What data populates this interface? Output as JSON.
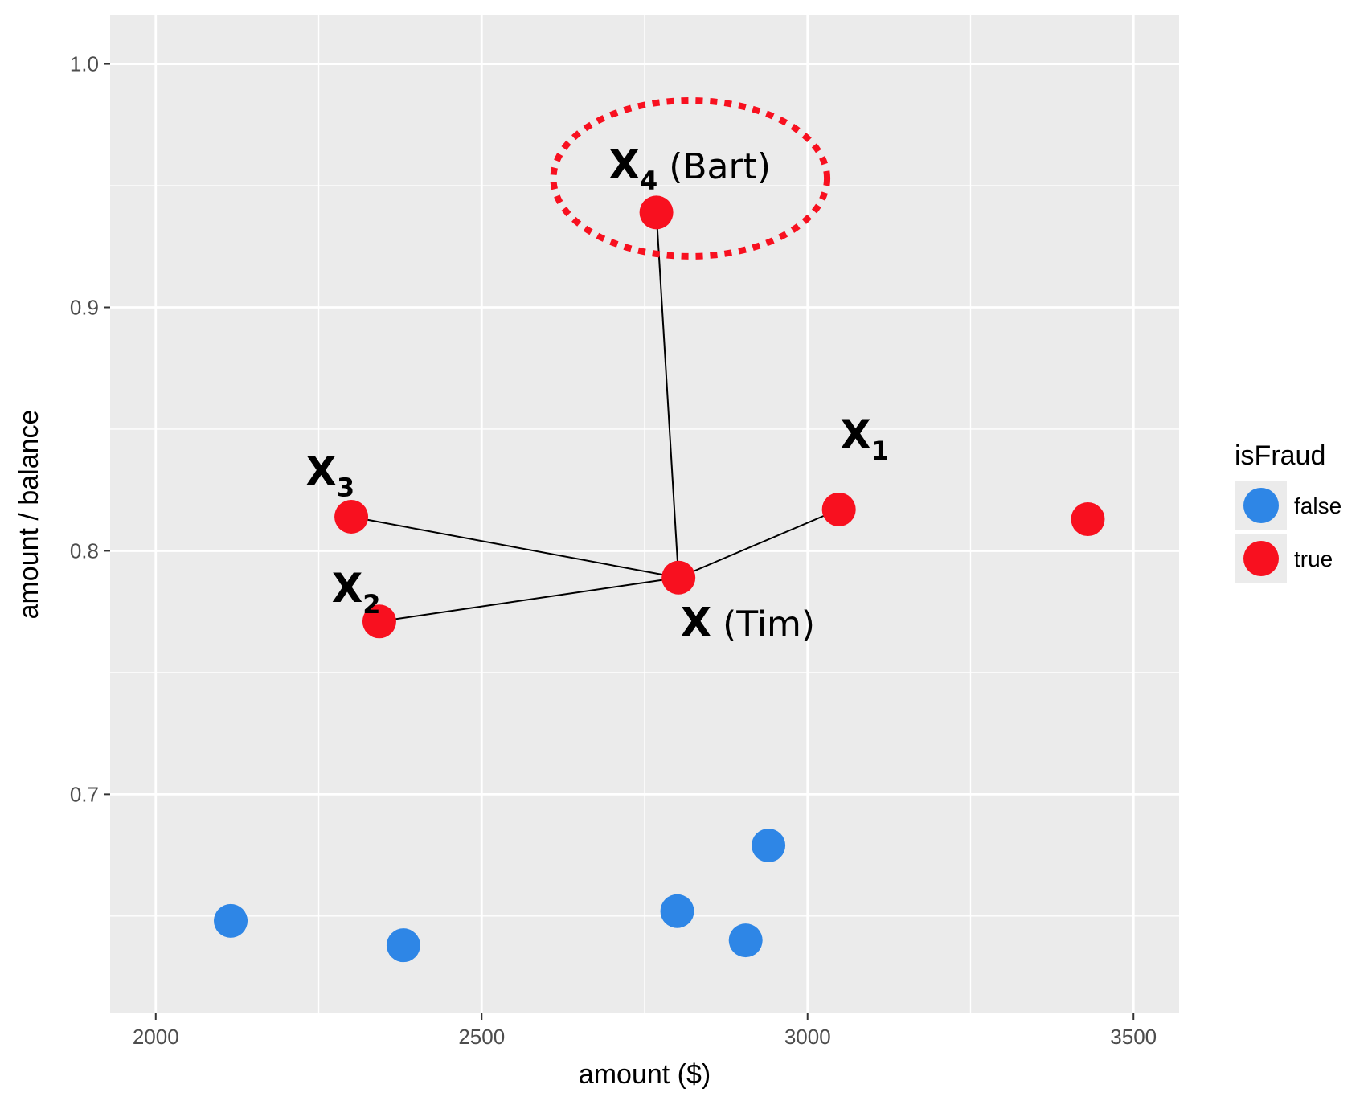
{
  "chart_data": {
    "type": "scatter",
    "xlabel": "amount ($)",
    "ylabel": "amount / balance",
    "xlim": [
      1930,
      3570
    ],
    "ylim": [
      0.61,
      1.02
    ],
    "x_ticks": [
      "2000",
      "2500",
      "3000",
      "3500"
    ],
    "x_tick_values": [
      2000,
      2500,
      3000,
      3500
    ],
    "y_ticks": [
      "0.7",
      "0.8",
      "0.9",
      "1.0"
    ],
    "y_tick_values": [
      0.7,
      0.8,
      0.9,
      1.0
    ],
    "grid": true,
    "legend": {
      "title": "isFraud",
      "position": "right",
      "entries": [
        {
          "label": "false",
          "color": "#2e86e6"
        },
        {
          "label": "true",
          "color": "#f8101f"
        }
      ]
    },
    "series": [
      {
        "name": "false",
        "color": "#2e86e6",
        "points": [
          {
            "x": 2115,
            "y": 0.648
          },
          {
            "x": 2380,
            "y": 0.638
          },
          {
            "x": 2800,
            "y": 0.652
          },
          {
            "x": 2905,
            "y": 0.64
          },
          {
            "x": 2940,
            "y": 0.679
          }
        ]
      },
      {
        "name": "true",
        "color": "#f8101f",
        "points": [
          {
            "x": 2802,
            "y": 0.789
          },
          {
            "x": 3048,
            "y": 0.817
          },
          {
            "x": 2343,
            "y": 0.771
          },
          {
            "x": 2300,
            "y": 0.814
          },
          {
            "x": 2768,
            "y": 0.939
          },
          {
            "x": 3430,
            "y": 0.813
          }
        ]
      }
    ],
    "connections": [
      {
        "from": [
          2802,
          0.789
        ],
        "to": [
          3048,
          0.817
        ]
      },
      {
        "from": [
          2802,
          0.789
        ],
        "to": [
          2343,
          0.771
        ]
      },
      {
        "from": [
          2802,
          0.789
        ],
        "to": [
          2300,
          0.814
        ]
      },
      {
        "from": [
          2802,
          0.789
        ],
        "to": [
          2768,
          0.939
        ]
      }
    ],
    "annotations": [
      {
        "main": "X",
        "sub": "1",
        "paren": "",
        "x": 3050,
        "y": 0.842
      },
      {
        "main": "X",
        "sub": "2",
        "paren": "",
        "x": 2270,
        "y": 0.779
      },
      {
        "main": "X",
        "sub": "3",
        "paren": "",
        "x": 2230,
        "y": 0.827
      },
      {
        "main": "X",
        "sub": "4",
        "paren": "(Bart)",
        "x": 2695,
        "y": 0.953
      },
      {
        "main": "X",
        "sub": "",
        "paren": "(Tim)",
        "x": 2805,
        "y": 0.765
      }
    ],
    "highlight": {
      "type": "dotted-ellipse",
      "color": "#f8101f",
      "cx": 2820,
      "cy": 0.953,
      "rx": 210,
      "ry": 0.032
    }
  }
}
